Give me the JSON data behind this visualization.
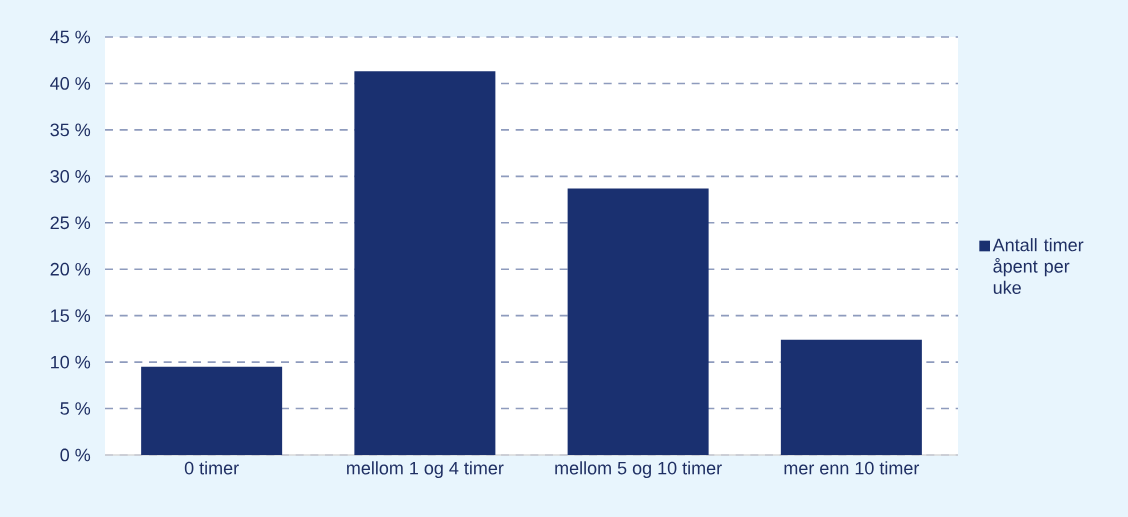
{
  "chart_data": {
    "type": "bar",
    "categories": [
      "0 timer",
      "mellom 1 og 4 timer",
      "mellom 5 og 10 timer",
      "mer enn 10 timer"
    ],
    "series": [
      {
        "name": "Antall timer åpent per uke",
        "color": "#1a3070",
        "values": [
          9.5,
          41.3,
          28.7,
          12.4
        ]
      }
    ],
    "ylim": [
      0,
      45
    ],
    "yticks": [
      {
        "value": 0,
        "label": "0 %"
      },
      {
        "value": 5,
        "label": "5 %"
      },
      {
        "value": 10,
        "label": "10 %"
      },
      {
        "value": 15,
        "label": "15 %"
      },
      {
        "value": 20,
        "label": "20 %"
      },
      {
        "value": 25,
        "label": "25 %"
      },
      {
        "value": 30,
        "label": "30 %"
      },
      {
        "value": 35,
        "label": "35 %"
      },
      {
        "value": 40,
        "label": "40 %"
      },
      {
        "value": 45,
        "label": "45 %"
      }
    ],
    "grid": "y",
    "legend": "right"
  }
}
